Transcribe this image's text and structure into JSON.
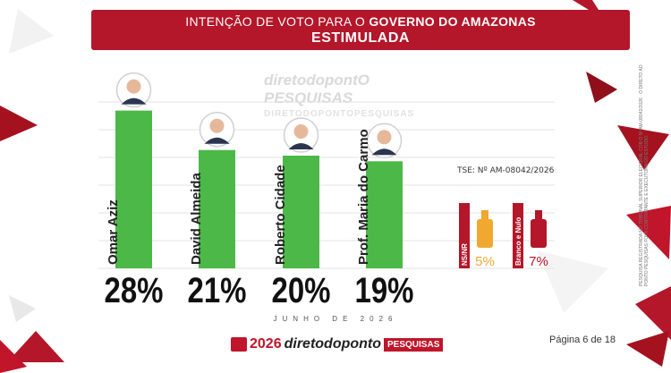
{
  "header": {
    "title_prefix": "INTENÇÃO DE VOTO PARA O",
    "title_bold": "GOVERNO DO AMAZONAS",
    "subtitle": "ESTIMULADA"
  },
  "watermark": {
    "brand": "diretodopontO PESQUISAS",
    "url": "DIRETODOPONTOPESQUISAS"
  },
  "tse": "TSE: Nº AM-08042/2026",
  "side_note": "PESQUISA REGISTRADA NO TRIBUNAL SUPERIOR ELEITORAL COB O Nº AM-08042/2026 · O DIRETO AO PONTO PESQUISAS FOI A CONTRATANTE E EXECUTORA DO ESTUDO.",
  "month": "JUNHO DE 2026",
  "footer": {
    "year": "2026",
    "brand": "diretodoponto",
    "pesq": "PESQUISAS"
  },
  "page": "Página 6 de 18",
  "chart_data": {
    "type": "bar",
    "categories": [
      "Omar Aziz",
      "David Almeida",
      "Roberto Cidade",
      "Prof. Maria do Carmo"
    ],
    "values": [
      28,
      21,
      20,
      19
    ],
    "value_labels": [
      "28%",
      "21%",
      "20%",
      "19%"
    ],
    "bar_color": "#4cb848",
    "other": [
      {
        "name": "NS/NR",
        "value": 5,
        "label": "5%",
        "color": "#f0a830"
      },
      {
        "name": "Branco e Nulo",
        "value": 7,
        "label": "7%",
        "color": "#b4162a"
      }
    ],
    "ylim": [
      0,
      30
    ],
    "grid": true
  }
}
